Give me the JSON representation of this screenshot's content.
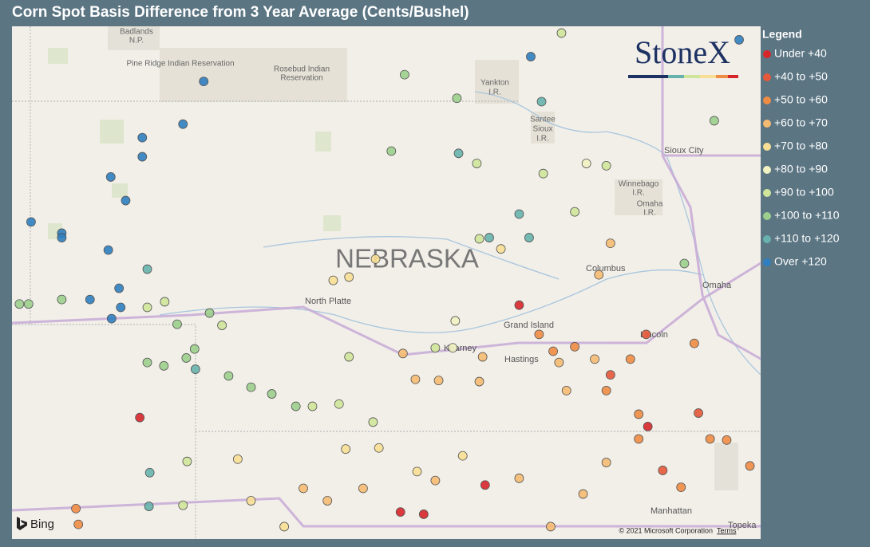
{
  "header": {
    "title": "Corn Spot Basis Difference from 3 Year Average (Cents/Bushel)"
  },
  "legend": {
    "title": "Legend",
    "items": [
      {
        "label": "Under +40",
        "color": "#d7262a"
      },
      {
        "label": "+40 to +50",
        "color": "#e5583a"
      },
      {
        "label": "+50 to +60",
        "color": "#ef8c44"
      },
      {
        "label": "+60 to +70",
        "color": "#f6bb72"
      },
      {
        "label": "+70 to +80",
        "color": "#f8df95"
      },
      {
        "label": "+80 to +90",
        "color": "#f2f2c2"
      },
      {
        "label": "+90 to +100",
        "color": "#cfe59b"
      },
      {
        "label": "+100 to +110",
        "color": "#9ccf8d"
      },
      {
        "label": "+110 to +120",
        "color": "#67b2ad"
      },
      {
        "label": "Over +120",
        "color": "#2f7ec0"
      }
    ]
  },
  "logo": "StoneX",
  "map": {
    "labels": {
      "badlands": [
        "Badlands",
        "N.P."
      ],
      "pine_ridge": "Pine Ridge Indian Reservation",
      "rosebud": [
        "Rosebud Indian",
        "Reservation"
      ],
      "yankton": [
        "Yankton",
        "I.R."
      ],
      "santee": [
        "Santee",
        "Sioux",
        "I.R."
      ],
      "sioux_city": "Sioux City",
      "winnebago": [
        "Winnebago",
        "I.R."
      ],
      "omaha_ir": [
        "Omaha",
        "I.R."
      ],
      "state": "NEBRASKA",
      "columbus": "Columbus",
      "omaha": "Omaha",
      "north_platte": "North Platte",
      "grand_island": "Grand Island",
      "kearney": "Kearney",
      "hastings": "Hastings",
      "lincoln": "Lincoln",
      "manhattan": "Manhattan",
      "topeka": "Topeka"
    },
    "provider": "Bing",
    "copyright": "© 2021 Microsoft Corporation",
    "terms": "Terms",
    "points": [
      [
        -101.95,
        43.12,
        9
      ],
      [
        -102.2,
        42.74,
        9
      ],
      [
        -102.69,
        42.62,
        9
      ],
      [
        -102.69,
        42.45,
        9
      ],
      [
        -103.07,
        42.27,
        9
      ],
      [
        -102.89,
        42.06,
        9
      ],
      [
        -104.03,
        41.87,
        9
      ],
      [
        -103.66,
        41.77,
        9
      ],
      [
        -103.66,
        41.73,
        9
      ],
      [
        -103.1,
        41.62,
        9
      ],
      [
        -102.97,
        41.28,
        9
      ],
      [
        -103.32,
        41.18,
        9
      ],
      [
        -102.95,
        41.11,
        9
      ],
      [
        -103.06,
        41.01,
        9
      ],
      [
        -98.01,
        43.34,
        9
      ],
      [
        -95.5,
        43.49,
        9
      ],
      [
        -102.63,
        41.45,
        8
      ],
      [
        -102.6,
        39.64,
        8
      ],
      [
        -102.05,
        40.56,
        8
      ],
      [
        -102.61,
        39.34,
        8
      ],
      [
        -98.15,
        41.94,
        8
      ],
      [
        -98.03,
        41.73,
        8
      ],
      [
        -98.51,
        41.73,
        8
      ],
      [
        -97.88,
        42.94,
        8
      ],
      [
        -98.88,
        42.48,
        8
      ],
      [
        -104.17,
        41.14,
        7
      ],
      [
        -104.06,
        41.14,
        7
      ],
      [
        -103.66,
        41.18,
        7
      ],
      [
        -102.27,
        40.96,
        7
      ],
      [
        -101.88,
        41.06,
        7
      ],
      [
        -101.65,
        40.5,
        7
      ],
      [
        -101.38,
        40.4,
        7
      ],
      [
        -101.13,
        40.34,
        7
      ],
      [
        -100.84,
        40.23,
        7
      ],
      [
        -102.63,
        40.62,
        7
      ],
      [
        -102.43,
        40.59,
        7
      ],
      [
        -102.16,
        40.66,
        7
      ],
      [
        -102.06,
        40.74,
        7
      ],
      [
        -99.53,
        43.18,
        7
      ],
      [
        -98.9,
        42.97,
        7
      ],
      [
        -99.69,
        42.5,
        7
      ],
      [
        -96.16,
        41.5,
        7
      ],
      [
        -95.8,
        42.77,
        7
      ],
      [
        -102.63,
        41.11,
        6
      ],
      [
        -102.42,
        41.16,
        6
      ],
      [
        -101.73,
        40.95,
        6
      ],
      [
        -100.64,
        40.23,
        6
      ],
      [
        -100.2,
        40.67,
        6
      ],
      [
        -100.32,
        40.25,
        6
      ],
      [
        -99.91,
        40.09,
        6
      ],
      [
        -97.64,
        43.55,
        6
      ],
      [
        -98.66,
        42.39,
        6
      ],
      [
        -97.86,
        42.3,
        6
      ],
      [
        -97.48,
        41.96,
        6
      ],
      [
        -97.1,
        42.37,
        6
      ],
      [
        -98.63,
        41.72,
        6
      ],
      [
        -99.16,
        40.75,
        6
      ],
      [
        -102.2,
        39.35,
        6
      ],
      [
        -102.15,
        39.74,
        6
      ],
      [
        -98.95,
        40.75,
        5
      ],
      [
        -98.92,
        40.99,
        5
      ],
      [
        -97.34,
        42.39,
        5
      ],
      [
        -100.39,
        41.35,
        4
      ],
      [
        -100.2,
        41.38,
        4
      ],
      [
        -101.54,
        39.76,
        4
      ],
      [
        -101.38,
        39.39,
        4
      ],
      [
        -100.98,
        39.16,
        4
      ],
      [
        -100.24,
        39.85,
        4
      ],
      [
        -99.88,
        41.54,
        4
      ],
      [
        -98.37,
        41.63,
        4
      ],
      [
        -99.38,
        39.65,
        4
      ],
      [
        -98.83,
        39.79,
        4
      ],
      [
        -99.84,
        39.86,
        4
      ],
      [
        -99.4,
        40.47,
        3
      ],
      [
        -99.55,
        40.7,
        3
      ],
      [
        -99.12,
        40.46,
        3
      ],
      [
        -98.63,
        40.45,
        3
      ],
      [
        -98.59,
        40.67,
        3
      ],
      [
        -100.75,
        39.5,
        3
      ],
      [
        -100.46,
        39.39,
        3
      ],
      [
        -100.03,
        39.5,
        3
      ],
      [
        -99.16,
        39.57,
        3
      ],
      [
        -97.67,
        40.62,
        3
      ],
      [
        -97.24,
        40.65,
        3
      ],
      [
        -97.58,
        40.37,
        3
      ],
      [
        -97.38,
        39.45,
        3
      ],
      [
        -98.15,
        39.59,
        3
      ],
      [
        -97.1,
        39.73,
        3
      ],
      [
        -97.77,
        39.16,
        3
      ],
      [
        -97.05,
        41.68,
        3
      ],
      [
        -97.19,
        41.4,
        3
      ],
      [
        -97.91,
        40.87,
        2
      ],
      [
        -97.74,
        40.72,
        2
      ],
      [
        -97.48,
        40.76,
        2
      ],
      [
        -96.81,
        40.65,
        2
      ],
      [
        -97.1,
        40.37,
        2
      ],
      [
        -96.71,
        40.16,
        2
      ],
      [
        -96.2,
        39.51,
        2
      ],
      [
        -95.85,
        39.94,
        2
      ],
      [
        -95.65,
        39.93,
        2
      ],
      [
        -95.37,
        39.7,
        2
      ],
      [
        -96.71,
        39.94,
        2
      ],
      [
        -96.04,
        40.79,
        2
      ],
      [
        -103.46,
        39.18,
        2
      ],
      [
        -103.49,
        39.32,
        2
      ],
      [
        -97.05,
        40.51,
        1
      ],
      [
        -96.62,
        40.87,
        1
      ],
      [
        -96.42,
        39.66,
        1
      ],
      [
        -95.99,
        40.17,
        1
      ],
      [
        -98.15,
        41.13,
        0
      ],
      [
        -102.72,
        40.13,
        0
      ],
      [
        -99.58,
        39.29,
        0
      ],
      [
        -99.3,
        39.27,
        0
      ],
      [
        -98.56,
        39.53,
        0
      ],
      [
        -96.6,
        40.05,
        0
      ]
    ]
  }
}
